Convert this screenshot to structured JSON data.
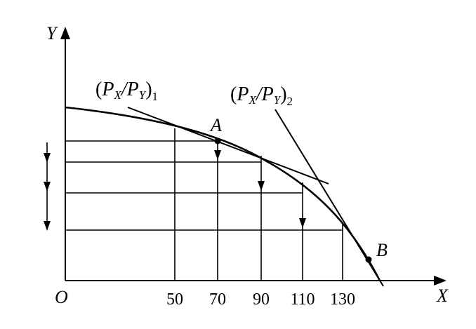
{
  "axes": {
    "x_label": "X",
    "y_label": "Y",
    "origin_label": "O",
    "x_ticks": [
      "50",
      "70",
      "90",
      "110",
      "130"
    ]
  },
  "points": {
    "a_label": "A",
    "b_label": "B"
  },
  "price_lines": {
    "line1": {
      "open": "(",
      "p1": "P",
      "sub1": "X",
      "slash": "/",
      "p2": "P",
      "sub2": "Y",
      "close": ")",
      "index": "1"
    },
    "line2": {
      "open": "(",
      "p1": "P",
      "sub1": "X",
      "slash": "/",
      "p2": "P",
      "sub2": "Y",
      "close": ")",
      "index": "2"
    }
  }
}
